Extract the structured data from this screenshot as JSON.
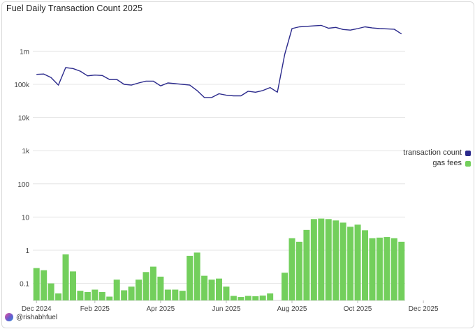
{
  "title": "Fuel Daily Transaction Count 2025",
  "credit": "@rishabhfuel",
  "legend": [
    {
      "label": "transaction count",
      "color": "#2b2a8c"
    },
    {
      "label": "gas fees",
      "color": "#73cf5c"
    }
  ],
  "chart_data": {
    "type": "bar+line",
    "y_scale": "log",
    "ylim": [
      0.03,
      8000000
    ],
    "y_ticks": [
      {
        "value": 0.1,
        "label": "0.1"
      },
      {
        "value": 1,
        "label": "1"
      },
      {
        "value": 10,
        "label": "10"
      },
      {
        "value": 100,
        "label": "100"
      },
      {
        "value": 1000,
        "label": "1k"
      },
      {
        "value": 10000,
        "label": "10k"
      },
      {
        "value": 100000,
        "label": "100k"
      },
      {
        "value": 1000000,
        "label": "1m"
      }
    ],
    "grid": true,
    "x_tick_labels": [
      "Dec 2024",
      "Feb 2025",
      "Apr 2025",
      "Jun 2025",
      "Aug 2025",
      "Oct 2025",
      "Dec 2025"
    ],
    "x_tick_positions": [
      0,
      8,
      17,
      26,
      35,
      44,
      53
    ],
    "series": [
      {
        "name": "transaction count",
        "type": "line",
        "color": "#2b2a8c",
        "values": [
          200000,
          205000,
          160000,
          95000,
          320000,
          300000,
          250000,
          180000,
          190000,
          185000,
          140000,
          140000,
          100000,
          95000,
          110000,
          125000,
          125000,
          90000,
          110000,
          105000,
          100000,
          95000,
          65000,
          40000,
          40000,
          52000,
          47000,
          45000,
          45000,
          62000,
          58000,
          65000,
          80000,
          58000,
          800000,
          4800000,
          5400000,
          5600000,
          5800000,
          6000000,
          4900000,
          5200000,
          4500000,
          4300000,
          4800000,
          5400000,
          5000000,
          4800000,
          4700000,
          4600000,
          3300000
        ]
      },
      {
        "name": "gas fees",
        "type": "bar",
        "color": "#73cf5c",
        "values": [
          0.29,
          0.25,
          0.1,
          0.05,
          0.75,
          0.23,
          0.06,
          0.055,
          0.065,
          0.055,
          0.04,
          0.13,
          0.062,
          0.08,
          0.13,
          0.22,
          0.32,
          0.16,
          0.065,
          0.065,
          0.06,
          0.68,
          0.85,
          0.17,
          0.13,
          0.14,
          0.08,
          0.042,
          0.039,
          0.042,
          0.041,
          0.043,
          0.05,
          null,
          0.21,
          2.3,
          1.8,
          4.1,
          8.7,
          9.0,
          8.7,
          7.9,
          6.8,
          5.1,
          5.9,
          4.0,
          2.3,
          2.4,
          2.5,
          2.3,
          1.8
        ]
      }
    ]
  }
}
